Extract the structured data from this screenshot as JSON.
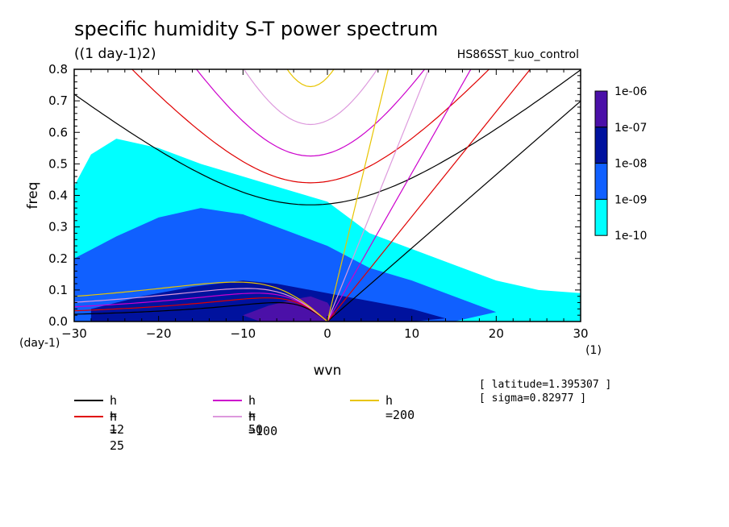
{
  "title": "specific humidity S-T power spectrum",
  "subtitle": "((1 day-1)2)",
  "run_name": "HS86SST_kuo_control",
  "annotations": {
    "latitude": "[ latitude=1.395307 ]",
    "sigma": "[ sigma=0.82977 ]"
  },
  "legend": [
    {
      "label": "h = 12",
      "color": "#000000"
    },
    {
      "label": "h = 25",
      "color": "#e00000"
    },
    {
      "label": "h = 50",
      "color": "#cc00cc"
    },
    {
      "label": "h =100",
      "color": "#dd99dd"
    },
    {
      "label": "h =200",
      "color": "#e8c400"
    }
  ],
  "colorbar": {
    "labels": [
      "1e-06",
      "1e-07",
      "1e-08",
      "1e-09",
      "1e-10"
    ],
    "colors": [
      "#4b10a8",
      "#00129e",
      "#1060ff",
      "#00ffff"
    ]
  },
  "chart_data": {
    "type": "heatmap",
    "xlabel": "wvn",
    "ylabel": "freq",
    "x_unit": "(1)",
    "y_unit": "(day-1)",
    "xlim": [
      -30,
      30
    ],
    "ylim": [
      0,
      0.8
    ],
    "xticks": [
      -30,
      -20,
      -10,
      0,
      10,
      20,
      30
    ],
    "yticks": [
      0.0,
      0.1,
      0.2,
      0.3,
      0.4,
      0.5,
      0.6,
      0.7,
      0.8
    ],
    "dispersion_h": [
      12,
      25,
      50,
      100,
      200
    ],
    "inertia_gravity_min_freq": [
      0.37,
      0.44,
      0.525,
      0.625,
      0.745
    ],
    "rossby_peak_freq": [
      0.06,
      0.075,
      0.09,
      0.105,
      0.125
    ],
    "kelvin_slope_per_wvn": [
      0.0233,
      0.0333,
      0.0471,
      0.0667,
      0.111
    ],
    "levels": [
      "1e-10",
      "1e-09",
      "1e-08",
      "1e-07",
      "1e-06"
    ],
    "spectrum_regions": [
      {
        "level": "1e-10",
        "x": [
          -30,
          -28,
          -25,
          -20,
          -15,
          -10,
          -5,
          0,
          5,
          10,
          15,
          20,
          25,
          30,
          30,
          20,
          10,
          0,
          -10,
          -20,
          -30
        ],
        "y": [
          0.43,
          0.53,
          0.58,
          0.55,
          0.5,
          0.46,
          0.42,
          0.38,
          0.28,
          0.23,
          0.18,
          0.13,
          0.1,
          0.09,
          0.0,
          0.0,
          0.0,
          0.0,
          0.0,
          0.0,
          0.0
        ]
      },
      {
        "level": "1e-09",
        "x": [
          -30,
          -25,
          -20,
          -15,
          -10,
          -5,
          0,
          5,
          10,
          15,
          20,
          15,
          10,
          5,
          0,
          -10,
          -20,
          -30
        ],
        "y": [
          0.2,
          0.27,
          0.33,
          0.36,
          0.34,
          0.29,
          0.24,
          0.17,
          0.13,
          0.08,
          0.03,
          0.0,
          0.0,
          0.0,
          0.0,
          0.0,
          0.0,
          0.0
        ]
      },
      {
        "level": "1e-08",
        "x": [
          -28,
          -22,
          -16,
          -10,
          -6,
          -2,
          2,
          6,
          10,
          14,
          10,
          4,
          -4,
          -12,
          -20,
          -28
        ],
        "y": [
          0.04,
          0.08,
          0.11,
          0.13,
          0.12,
          0.1,
          0.08,
          0.06,
          0.04,
          0.01,
          0.0,
          0.0,
          0.0,
          0.0,
          0.0,
          0.0
        ]
      },
      {
        "level": "1e-07",
        "x": [
          -10,
          -7,
          -4,
          -2,
          0,
          1,
          0,
          -3,
          -8
        ],
        "y": [
          0.02,
          0.05,
          0.07,
          0.08,
          0.06,
          0.02,
          0.0,
          0.0,
          0.0
        ]
      }
    ]
  }
}
